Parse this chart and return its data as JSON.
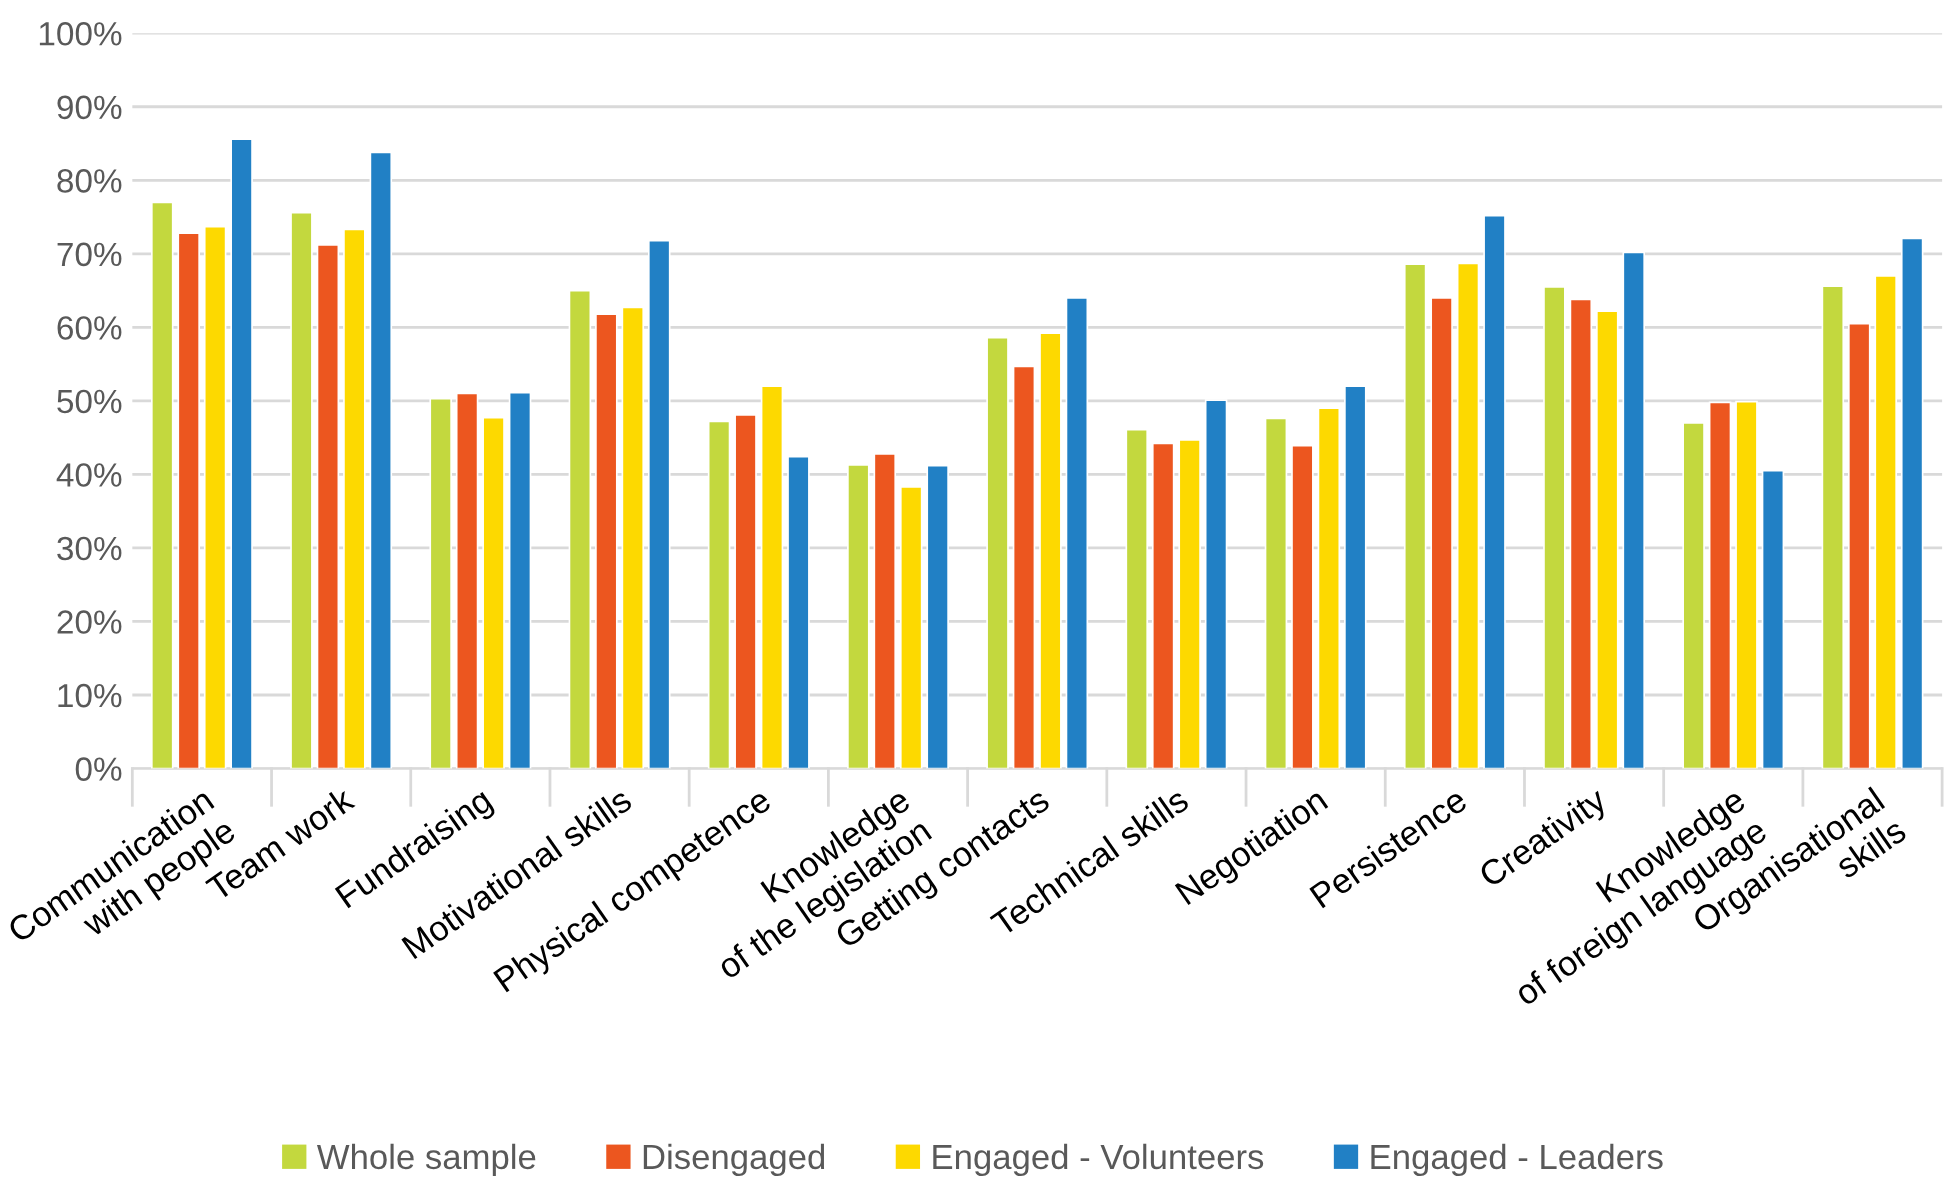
{
  "chart_data": {
    "type": "bar",
    "categories": [
      "Communication\nwith people",
      "Team work",
      "Fundraising",
      "Motivational skills",
      "Physical competence",
      "Knowledge\nof the legislation",
      "Getting contacts",
      "Technical skills",
      "Negotiation",
      "Persistence",
      "Creativity",
      "Knowledge\nof foreign language",
      "Organisational\nskills"
    ],
    "series": [
      {
        "name": "Whole sample",
        "color": "#c3d83e",
        "values": [
          77.0,
          75.6,
          50.3,
          65.0,
          47.2,
          41.3,
          58.6,
          46.1,
          47.6,
          68.6,
          65.5,
          47.0,
          65.6
        ]
      },
      {
        "name": "Disengaged",
        "color": "#ec561f",
        "values": [
          72.8,
          71.2,
          51.0,
          61.8,
          48.1,
          42.8,
          54.7,
          44.2,
          43.9,
          64.0,
          63.8,
          49.8,
          60.5
        ]
      },
      {
        "name": "Engaged - Volunteers",
        "color": "#fdd900",
        "values": [
          73.7,
          73.3,
          47.7,
          62.7,
          52.0,
          38.3,
          59.2,
          44.7,
          49.0,
          68.7,
          62.2,
          49.9,
          67.0
        ]
      },
      {
        "name": "Engaged - Leaders",
        "color": "#2180c5",
        "values": [
          85.6,
          83.8,
          51.1,
          71.8,
          42.4,
          41.2,
          64.0,
          50.1,
          52.0,
          75.2,
          70.2,
          40.5,
          72.1
        ]
      }
    ],
    "ylim": [
      0,
      100
    ],
    "yticks": [
      {
        "value": 0,
        "label": "0%"
      },
      {
        "value": 10,
        "label": "10%"
      },
      {
        "value": 20,
        "label": "20%"
      },
      {
        "value": 30,
        "label": "30%"
      },
      {
        "value": 40,
        "label": "40%"
      },
      {
        "value": 50,
        "label": "50%"
      },
      {
        "value": 60,
        "label": "60%"
      },
      {
        "value": 70,
        "label": "70%"
      },
      {
        "value": 80,
        "label": "80%"
      },
      {
        "value": 90,
        "label": "90%"
      },
      {
        "value": 100,
        "label": "100%"
      }
    ],
    "grid": "y",
    "legend": "bottom"
  }
}
